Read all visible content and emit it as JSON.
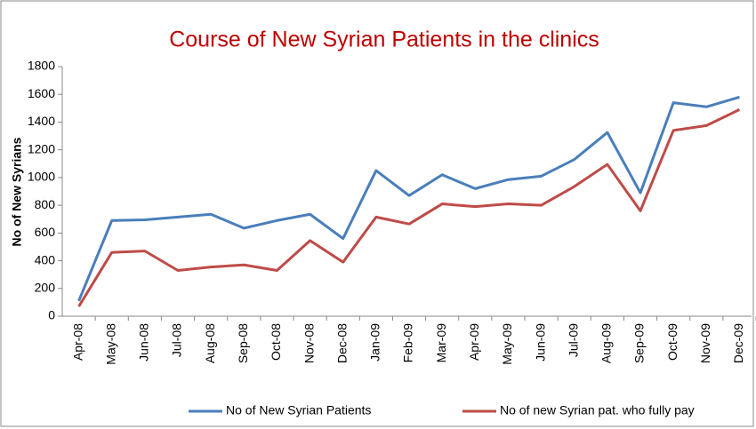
{
  "chart_data": {
    "type": "line",
    "title": "Course of New Syrian Patients in the clinics",
    "y_label": "No of New Syrians",
    "categories": [
      "Apr-08",
      "May-08",
      "Jun-08",
      "Jul-08",
      "Aug-08",
      "Sep-08",
      "Oct-08",
      "Nov-08",
      "Dec-08",
      "Jan-09",
      "Feb-09",
      "Mar-09",
      "Apr-09",
      "May-09",
      "Jun-09",
      "Jul-09",
      "Aug-09",
      "Sep-09",
      "Oct-09",
      "Nov-09",
      "Dec-09"
    ],
    "series": [
      {
        "name": "No of New Syrian Patients",
        "color": "#4a7ebb",
        "values": [
          110,
          690,
          695,
          715,
          735,
          635,
          690,
          735,
          560,
          1050,
          870,
          1020,
          920,
          985,
          1010,
          1130,
          1325,
          890,
          1540,
          1510,
          1580
        ]
      },
      {
        "name": "No of new Syrian pat. who fully pay",
        "color": "#be4b48",
        "values": [
          70,
          460,
          470,
          330,
          355,
          370,
          330,
          545,
          390,
          715,
          665,
          810,
          790,
          810,
          800,
          935,
          1095,
          760,
          1340,
          1375,
          1490
        ]
      }
    ],
    "ylim": [
      0,
      1800
    ],
    "yticks": [
      0,
      200,
      400,
      600,
      800,
      1000,
      1200,
      1400,
      1600,
      1800
    ],
    "grid": false,
    "legend": "bottom"
  }
}
